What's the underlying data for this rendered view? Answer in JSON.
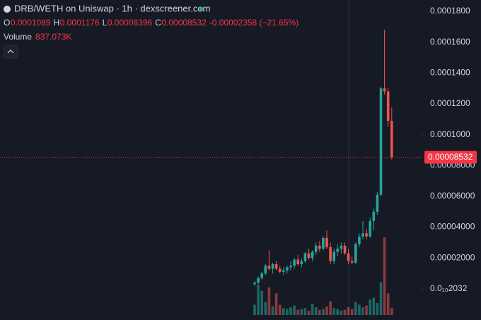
{
  "chart_data": {
    "type": "candlestick",
    "title": "DRB/WETH on Uniswap · 1h · dexscreener.com",
    "legend": {
      "o_key": "O",
      "o": "0.0001089",
      "h_key": "H",
      "h": "0.0001176",
      "l_key": "L",
      "l": "0.00008396",
      "c_key": "C",
      "c": "0.00008532",
      "change": "-0.00002358 (−21.65%)",
      "volume_key": "Volume",
      "volume": "837.073K"
    },
    "last_price_label": "0.00008532",
    "open": [
      3e-06,
      4e-06,
      7e-06,
      1e-05,
      1.5e-05,
      1.3e-05,
      1.6e-05,
      1.3e-05,
      1.1e-05,
      1.2e-05,
      1.4e-05,
      1.5e-05,
      1.9e-05,
      1.6e-05,
      1.8e-05,
      2.3e-05,
      2e-05,
      2.4e-05,
      2.8e-05,
      2.6e-05,
      3.3e-05,
      2.7e-05,
      1.8e-05,
      2.4e-05,
      2.6e-05,
      2.8e-05,
      2.3e-05,
      1.8e-05,
      1.7e-05,
      2.9e-05,
      3.4e-05,
      3.6e-05,
      3.4e-05,
      4.4e-05,
      5e-05,
      6.1e-05,
      0.00013,
      0.000128,
      0.0001089
    ],
    "high": [
      5e-06,
      8e-06,
      1.1e-05,
      1.6e-05,
      2.5e-05,
      1.7e-05,
      1.8e-05,
      1.5e-05,
      1.4e-05,
      1.5e-05,
      1.8e-05,
      2e-05,
      2.2e-05,
      2e-05,
      2.4e-05,
      2.6e-05,
      2.5e-05,
      3e-05,
      3.1e-05,
      3.4e-05,
      3.8e-05,
      3e-05,
      2.6e-05,
      2.9e-05,
      3e-05,
      3e-05,
      2.6e-05,
      2.1e-05,
      3e-05,
      3.6e-05,
      4.4e-05,
      3.9e-05,
      4.6e-05,
      5.2e-05,
      6.3e-05,
      0.000131,
      0.000168,
      0.00013,
      0.0001176
    ],
    "low": [
      2e-06,
      3e-06,
      6e-06,
      9e-06,
      1.2e-05,
      1e-05,
      1.2e-05,
      1e-05,
      9e-06,
      1e-05,
      1.2e-05,
      1.3e-05,
      1.5e-05,
      1.4e-05,
      1.7e-05,
      1.9e-05,
      1.8e-05,
      2.2e-05,
      2.4e-05,
      2.5e-05,
      2.6e-05,
      1.6e-05,
      1.6e-05,
      2.1e-05,
      2.3e-05,
      2.2e-05,
      1.6e-05,
      1.6e-05,
      1.6e-05,
      2.7e-05,
      3.2e-05,
      3.2e-05,
      3.3e-05,
      3.8e-05,
      4.8e-05,
      6e-05,
      0.000126,
      0.000105,
      8.396e-05
    ],
    "close": [
      4e-06,
      7e-06,
      1e-05,
      1.5e-05,
      1.3e-05,
      1.6e-05,
      1.3e-05,
      1.1e-05,
      1.2e-05,
      1.4e-05,
      1.5e-05,
      1.9e-05,
      1.6e-05,
      1.8e-05,
      2.3e-05,
      2e-05,
      2.4e-05,
      2.8e-05,
      2.6e-05,
      3.3e-05,
      2.7e-05,
      1.8e-05,
      2.4e-05,
      2.6e-05,
      2.8e-05,
      2.3e-05,
      1.8e-05,
      1.7e-05,
      2.9e-05,
      3.4e-05,
      3.6e-05,
      3.4e-05,
      4.4e-05,
      5e-05,
      6.1e-05,
      0.00013,
      0.000128,
      0.0001089,
      8.532e-05
    ],
    "volume": [
      1200,
      3500,
      2800,
      1500,
      3200,
      1000,
      2500,
      1200,
      800,
      700,
      900,
      1100,
      600,
      700,
      800,
      500,
      1300,
      900,
      600,
      700,
      1000,
      1600,
      800,
      700,
      500,
      600,
      900,
      700,
      1500,
      1200,
      900,
      1100,
      1800,
      2000,
      1400,
      3800,
      9000,
      2500,
      837.073
    ],
    "up_color": "#26a69a",
    "down_color": "#ef5350",
    "ylim": [
      -2.02e-05,
      0.0001873
    ],
    "yticks": [
      {
        "value": 2.032e-11,
        "label": "0.0₁₀2032"
      },
      {
        "value": 2e-05,
        "label": "0.00002000"
      },
      {
        "value": 4e-05,
        "label": "0.00004000"
      },
      {
        "value": 6e-05,
        "label": "0.00006000"
      },
      {
        "value": 8e-05,
        "label": "0.00008000"
      },
      {
        "value": 0.0001,
        "label": "0.0001000"
      },
      {
        "value": 0.00012,
        "label": "0.0001200"
      },
      {
        "value": 0.00014,
        "label": "0.0001400"
      },
      {
        "value": 0.00016,
        "label": "0.0001600"
      },
      {
        "value": 0.00018,
        "label": "0.0001800"
      }
    ]
  }
}
